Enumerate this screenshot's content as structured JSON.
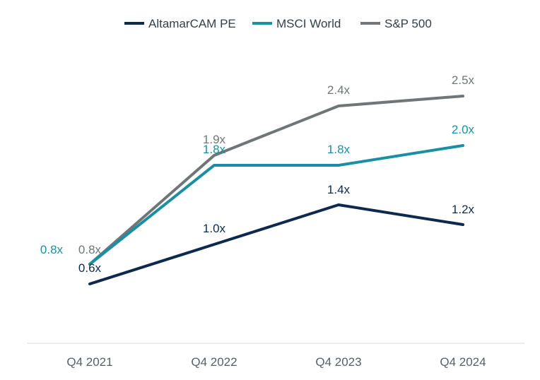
{
  "chart_data": {
    "type": "line",
    "categories": [
      "Q4 2021",
      "Q4 2022",
      "Q4 2023",
      "Q4 2024"
    ],
    "series": [
      {
        "name": "AltamarCAM PE",
        "color": "#0d2a4e",
        "values": [
          0.6,
          1.0,
          1.4,
          1.2
        ],
        "labels": [
          "0.6x",
          "1.0x",
          "1.4x",
          "1.2x"
        ]
      },
      {
        "name": "MSCI World",
        "color": "#1a8fa3",
        "values": [
          0.8,
          1.8,
          1.8,
          2.0
        ],
        "labels": [
          "0.8x",
          "1.8x",
          "1.8x",
          "2.0x"
        ]
      },
      {
        "name": "S&P 500",
        "color": "#707678",
        "values": [
          0.8,
          1.9,
          2.4,
          2.5
        ],
        "labels": [
          "0.8x",
          "1.9x",
          "2.4x",
          "2.5x"
        ]
      }
    ],
    "legend_position": "top-center",
    "grid": false
  }
}
